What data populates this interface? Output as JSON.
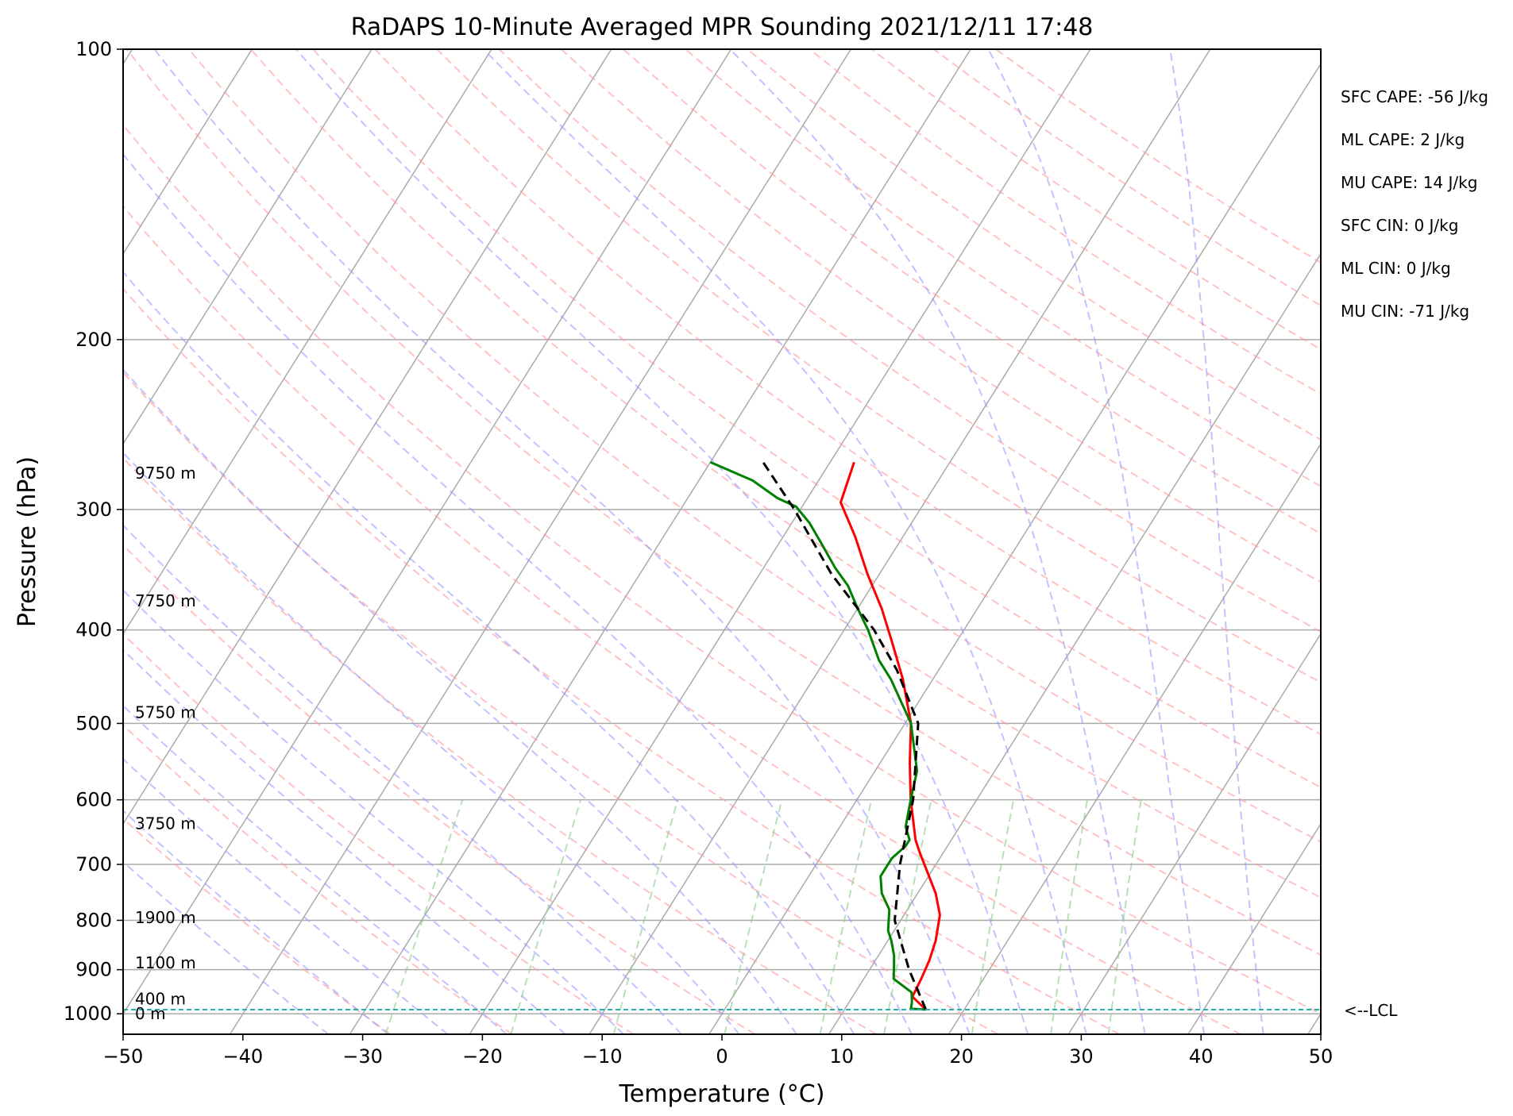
{
  "chart_data": {
    "type": "line",
    "diagram": "skew-T log-P",
    "title": "RaDAPS 10-Minute Averaged MPR Sounding 2021/12/11 17:48",
    "xlabel": "Temperature (°C)",
    "ylabel": "Pressure (hPa)",
    "xlim": [
      -50,
      50
    ],
    "ylim": [
      1050,
      100
    ],
    "y_scale": "log",
    "x_ticks": [
      -50,
      -40,
      -30,
      -20,
      -10,
      0,
      10,
      20,
      30,
      40,
      50
    ],
    "x_tick_labels": [
      "−50",
      "−40",
      "−30",
      "−20",
      "−10",
      "0",
      "10",
      "20",
      "30",
      "40",
      "50"
    ],
    "y_ticks": [
      1000,
      900,
      800,
      700,
      600,
      500,
      400,
      300,
      200,
      100
    ],
    "y_tick_labels": [
      "1000",
      "900",
      "800",
      "700",
      "600",
      "500",
      "400",
      "300",
      "200",
      "100"
    ],
    "grid": true,
    "colors": {
      "temperature": "#ff0000",
      "dewpoint": "#008000",
      "parcel": "#000000",
      "dry_adiabat": "#ff9999",
      "moist_adiabat": "#9999ff",
      "mixing_ratio": "#88cc88",
      "isotherm": "#aaaaaa",
      "lcl": "#20b2aa"
    },
    "series": [
      {
        "role": "temperature",
        "points": [
          [
            16.8,
            990
          ],
          [
            15.0,
            960
          ],
          [
            14.8,
            920
          ],
          [
            14.5,
            880
          ],
          [
            14.0,
            840
          ],
          [
            13.0,
            790
          ],
          [
            11.5,
            750
          ],
          [
            8.0,
            680
          ],
          [
            7.0,
            660
          ],
          [
            4.5,
            600
          ],
          [
            2.5,
            550
          ],
          [
            0.5,
            500
          ],
          [
            -2.5,
            450
          ],
          [
            -5.5,
            410
          ],
          [
            -8.0,
            380
          ],
          [
            -11.0,
            350
          ],
          [
            -14.0,
            320
          ],
          [
            -17.0,
            295
          ],
          [
            -18.0,
            268
          ]
        ]
      },
      {
        "role": "dewpoint",
        "points": [
          [
            16.8,
            990
          ],
          [
            15.5,
            988
          ],
          [
            15.3,
            975
          ],
          [
            15.0,
            962
          ],
          [
            14.7,
            950
          ],
          [
            12.5,
            920
          ],
          [
            11.8,
            890
          ],
          [
            11.3,
            870
          ],
          [
            10.3,
            840
          ],
          [
            9.5,
            820
          ],
          [
            8.5,
            780
          ],
          [
            7.0,
            750
          ],
          [
            6.0,
            720
          ],
          [
            6.0,
            690
          ],
          [
            6.5,
            670
          ],
          [
            6.5,
            660
          ],
          [
            5.5,
            640
          ],
          [
            5.0,
            620
          ],
          [
            4.5,
            600
          ],
          [
            3.5,
            560
          ],
          [
            0.5,
            500
          ],
          [
            -3.5,
            450
          ],
          [
            -5.5,
            430
          ],
          [
            -8.0,
            400
          ],
          [
            -10.0,
            380
          ],
          [
            -12.0,
            360
          ],
          [
            -14.0,
            345
          ],
          [
            -16.5,
            325
          ],
          [
            -18.5,
            310
          ],
          [
            -20.5,
            298
          ],
          [
            -22.5,
            292
          ],
          [
            -25.5,
            280
          ],
          [
            -30.0,
            268
          ]
        ]
      },
      {
        "role": "parcel",
        "points": [
          [
            16.8,
            990
          ],
          [
            13.3,
            900
          ],
          [
            9.5,
            800
          ],
          [
            7.0,
            700
          ],
          [
            4.7,
            600
          ],
          [
            1.1,
            500
          ],
          [
            -3.5,
            440
          ],
          [
            -7.5,
            400
          ],
          [
            -14.0,
            350
          ],
          [
            -20.5,
            300
          ],
          [
            -25.6,
            268
          ]
        ]
      }
    ],
    "lcl": {
      "pressure": 990,
      "label": "<--LCL"
    },
    "height_labels": [
      {
        "text": "9750 m",
        "pressure": 275
      },
      {
        "text": "7750 m",
        "pressure": 373
      },
      {
        "text": "5750 m",
        "pressure": 487
      },
      {
        "text": "3750 m",
        "pressure": 635
      },
      {
        "text": "1900 m",
        "pressure": 795
      },
      {
        "text": "1100 m",
        "pressure": 885
      },
      {
        "text": "400 m",
        "pressure": 965
      },
      {
        "text": "0 m",
        "pressure": 1000
      }
    ],
    "annotations": [
      "SFC CAPE: -56 J/kg",
      "ML CAPE: 2 J/kg",
      "MU CAPE: 14 J/kg",
      "SFC CIN: 0 J/kg",
      "ML CIN: 0 J/kg",
      "MU CIN: -71 J/kg"
    ]
  }
}
